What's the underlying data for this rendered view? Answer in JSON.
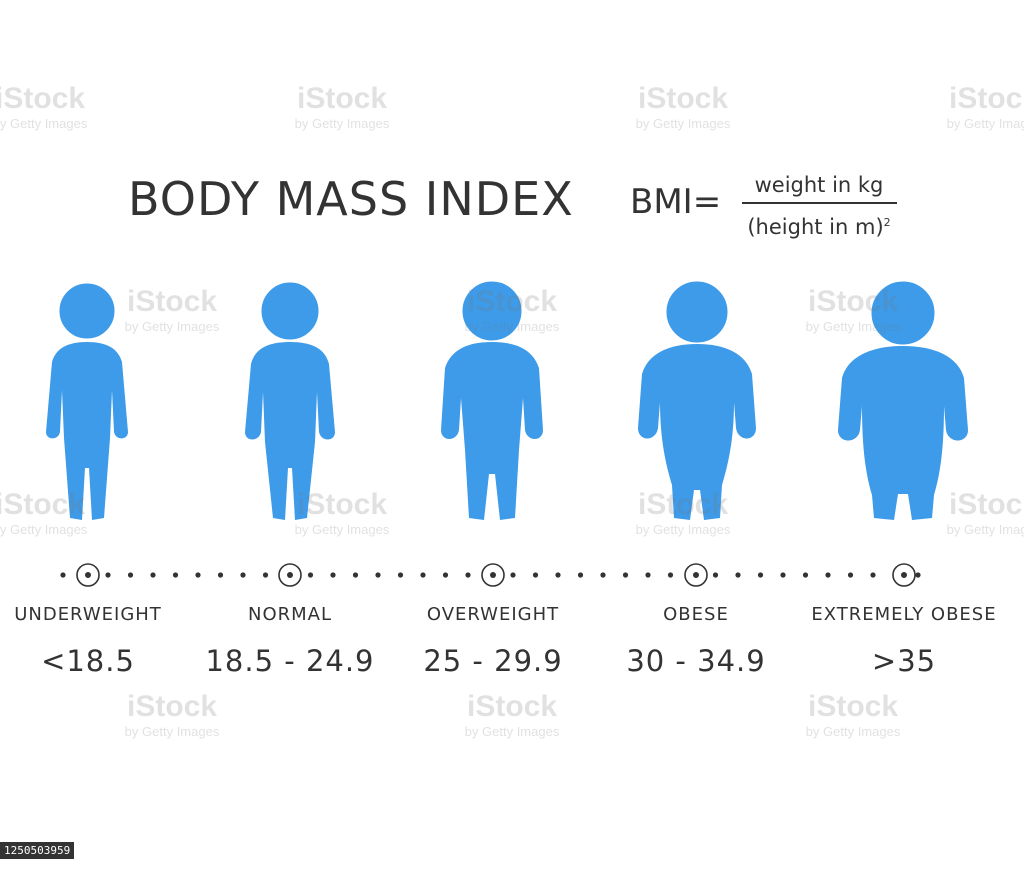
{
  "title": "BODY MASS INDEX",
  "formula": {
    "label": "BMI",
    "equals": "=",
    "numerator": "weight in kg",
    "denominator": "(height in m)",
    "exponent": "2"
  },
  "colors": {
    "figure": "#3d9be9",
    "text": "#333333",
    "background": "#ffffff"
  },
  "categories": [
    {
      "label": "UNDERWEIGHT",
      "range": "<18.5"
    },
    {
      "label": "NORMAL",
      "range": "18.5 - 24.9"
    },
    {
      "label": "OVERWEIGHT",
      "range": "25 - 29.9"
    },
    {
      "label": "OBESE",
      "range": "30 - 34.9"
    },
    {
      "label": "EXTREMELY OBESE",
      "range": ">35"
    }
  ],
  "watermark": {
    "main": "iStock",
    "sub": "by Getty Images"
  },
  "image_id": "1250503959"
}
